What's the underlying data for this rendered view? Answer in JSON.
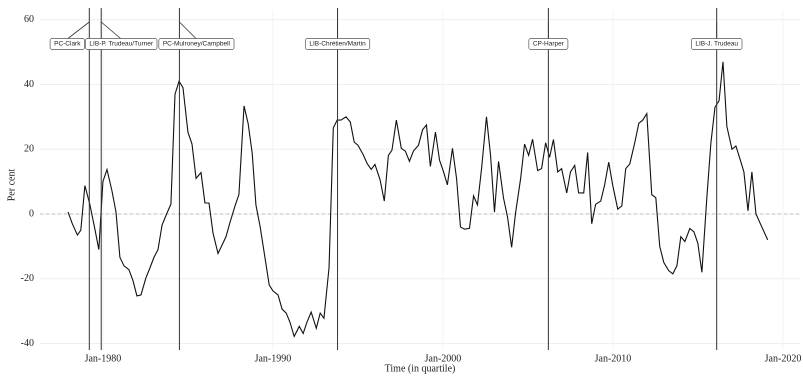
{
  "chart_data": {
    "type": "line",
    "x_label": "Time (in quartile)",
    "y_label": "Per cent",
    "xlim": [
      1976.3,
      2021
    ],
    "ylim": [
      -42,
      63
    ],
    "xticks": [
      {
        "value": 1980,
        "label": "Jan-1980"
      },
      {
        "value": 1990,
        "label": "Jan-1990"
      },
      {
        "value": 2000,
        "label": "Jan-2000"
      },
      {
        "value": 2010,
        "label": "Jan-2010"
      },
      {
        "value": 2020,
        "label": "Jan-2020"
      }
    ],
    "yticks": [
      -40,
      -20,
      0,
      20,
      40,
      60
    ],
    "grid": true,
    "reference_line": 0,
    "color": "#111111",
    "events": [
      {
        "label": "PC-Clark",
        "x": 1979.2
      },
      {
        "label": "LIB-P. Trudeau/Turner",
        "x": 1979.9
      },
      {
        "label": "PC-Mulroney/Campbell",
        "x": 1984.5
      },
      {
        "label": "LIB-Chrétien/Martin",
        "x": 1993.8
      },
      {
        "label": "CP-Harper",
        "x": 2006.2
      },
      {
        "label": "LIB-J. Trudeau",
        "x": 2016.1
      }
    ],
    "x": [
      1977.95,
      1978.2,
      1978.5,
      1978.7,
      1978.94,
      1979.23,
      1979.53,
      1979.76,
      1980.0,
      1980.24,
      1980.53,
      1980.77,
      1981.0,
      1981.24,
      1981.53,
      1981.77,
      1982.0,
      1982.24,
      1982.53,
      1982.77,
      1983.0,
      1983.24,
      1983.48,
      1983.77,
      1984.0,
      1984.24,
      1984.48,
      1984.71,
      1985.0,
      1985.24,
      1985.48,
      1985.77,
      1986.0,
      1986.24,
      1986.48,
      1986.77,
      1987.0,
      1987.24,
      1987.48,
      1987.77,
      1988.0,
      1988.3,
      1988.54,
      1988.78,
      1989.0,
      1989.25,
      1989.54,
      1989.78,
      1990.0,
      1990.3,
      1990.54,
      1990.78,
      1991.0,
      1991.25,
      1991.55,
      1991.78,
      1992.0,
      1992.25,
      1992.55,
      1992.78,
      1993.0,
      1993.3,
      1993.55,
      1993.78,
      1994.0,
      1994.3,
      1994.55,
      1994.78,
      1995.0,
      1995.3,
      1995.54,
      1995.78,
      1996.0,
      1996.3,
      1996.55,
      1996.79,
      1997.0,
      1997.26,
      1997.55,
      1997.79,
      1998.03,
      1998.26,
      1998.56,
      1998.8,
      1999.03,
      1999.26,
      1999.56,
      1999.8,
      2000.03,
      2000.26,
      2000.56,
      2000.8,
      2001.03,
      2001.27,
      2001.56,
      2001.8,
      2002.03,
      2002.27,
      2002.56,
      2002.8,
      2003.03,
      2003.27,
      2003.56,
      2003.8,
      2004.04,
      2004.27,
      2004.57,
      2004.8,
      2005.04,
      2005.27,
      2005.57,
      2005.8,
      2006.04,
      2006.27,
      2006.5,
      2006.75,
      2006.98,
      2007.28,
      2007.5,
      2007.75,
      2007.98,
      2008.28,
      2008.51,
      2008.75,
      2008.98,
      2009.28,
      2009.51,
      2009.75,
      2009.98,
      2010.28,
      2010.52,
      2010.75,
      2010.99,
      2011.28,
      2011.52,
      2011.75,
      2011.99,
      2012.28,
      2012.52,
      2012.75,
      2012.99,
      2013.28,
      2013.52,
      2013.76,
      2013.99,
      2014.23,
      2014.52,
      2014.76,
      2014.99,
      2015.23,
      2015.52,
      2015.76,
      2016.0,
      2016.24,
      2016.47,
      2016.7,
      2017.0,
      2017.23,
      2017.47,
      2017.7,
      2017.94,
      2018.17,
      2018.41,
      2019.1
    ],
    "values": [
      0.6,
      -3,
      -6.5,
      -5,
      8.75,
      3,
      -4.7,
      -11,
      10,
      13.75,
      7.2,
      0.6,
      -13.4,
      -16,
      -17.2,
      -20.6,
      -25.3,
      -25,
      -19.7,
      -16.6,
      -13.4,
      -11,
      -3.4,
      0.3,
      3,
      37,
      41,
      39,
      25.3,
      21.6,
      11,
      12.8,
      3.4,
      3.4,
      -6,
      -12.2,
      -9.7,
      -7,
      -2.5,
      2.5,
      6,
      33.4,
      28,
      18.8,
      2.8,
      -4,
      -13.75,
      -21.9,
      -23.75,
      -25,
      -29.4,
      -30.6,
      -33.4,
      -37.8,
      -34.7,
      -36.9,
      -33.4,
      -30.3,
      -35.3,
      -30.6,
      -32.2,
      -16.6,
      26.6,
      29,
      29,
      30,
      28.4,
      22.2,
      21.25,
      18.4,
      15.6,
      13.75,
      15.3,
      10.6,
      4,
      18.1,
      19.7,
      29,
      20.3,
      19.4,
      16.25,
      19.4,
      21.25,
      26,
      27.5,
      14.7,
      25.3,
      16.6,
      13.1,
      9,
      20.3,
      11,
      -4,
      -4.7,
      -4.4,
      5.6,
      2.8,
      14,
      30,
      18.1,
      0.6,
      16.25,
      5,
      -1,
      -10.3,
      0.3,
      11,
      21.6,
      18.1,
      23.1,
      13.4,
      14,
      22,
      17.5,
      23,
      13,
      14,
      6.5,
      13,
      15,
      6.5,
      6.5,
      19,
      -3,
      3,
      4,
      9,
      16,
      9,
      1.5,
      2.5,
      14,
      15.5,
      22,
      28,
      29,
      31,
      6,
      5,
      -10,
      -15,
      -17.5,
      -18.5,
      -16,
      -7,
      -8.5,
      -4.5,
      -5.5,
      -9,
      -18,
      5,
      22,
      33,
      35,
      47,
      27,
      20,
      21,
      17,
      13,
      1,
      13,
      0,
      -8
    ]
  }
}
